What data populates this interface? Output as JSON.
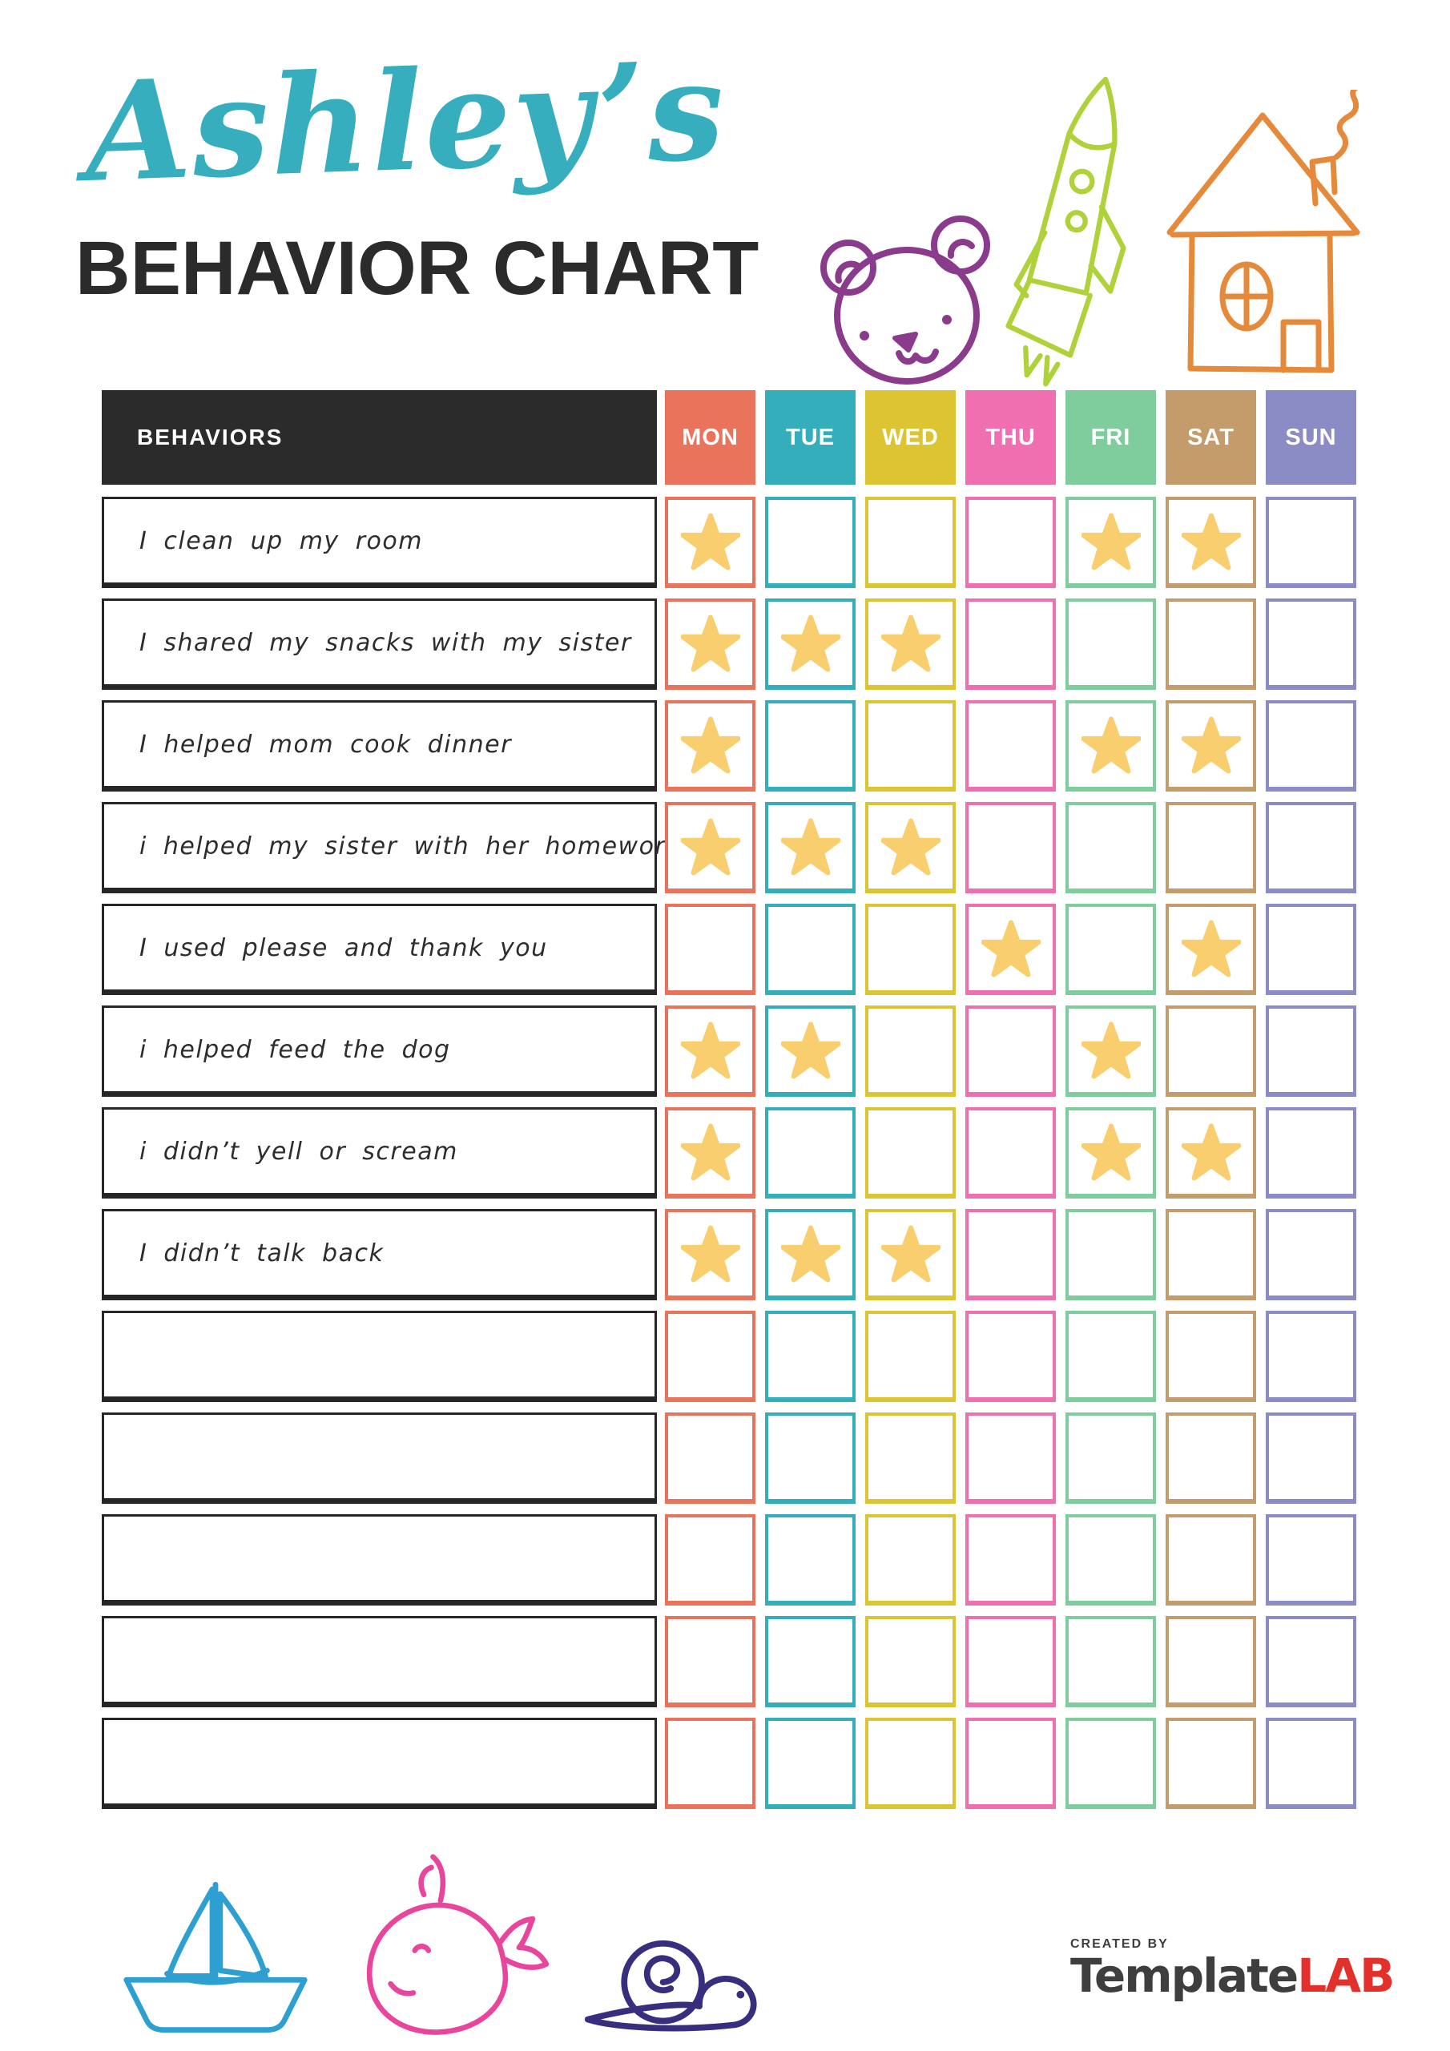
{
  "header": {
    "name": "Ashley’s",
    "title": "BEHAVIOR CHART",
    "icons": [
      "teddy-bear-icon",
      "rocket-icon",
      "house-icon"
    ]
  },
  "palette": {
    "name_teal": "#36AEBE",
    "title_dark": "#2B2B2B",
    "header_bg": "#2B2B2B",
    "star": "#F8CE6E",
    "bear": "#8A3B8C",
    "rocket": "#AFD139",
    "house": "#E58A3A",
    "boat": "#2E9FD1",
    "whale": "#E8459C",
    "snail": "#372F7E",
    "brand_dark": "#3E3E3E",
    "brand_red": "#E2312A"
  },
  "table": {
    "behaviors_label": "BEHAVIORS",
    "days": [
      {
        "label": "MON",
        "color": "#EA745B"
      },
      {
        "label": "TUE",
        "color": "#35AEBC"
      },
      {
        "label": "WED",
        "color": "#DCC433"
      },
      {
        "label": "THU",
        "color": "#F06FB0"
      },
      {
        "label": "FRI",
        "color": "#7FCC9D"
      },
      {
        "label": "SAT",
        "color": "#C49C6C"
      },
      {
        "label": "SUN",
        "color": "#8B8BC5"
      }
    ],
    "rows": [
      {
        "behavior": "I clean up my room",
        "stars": [
          1,
          0,
          0,
          0,
          1,
          1,
          0
        ]
      },
      {
        "behavior": "I shared my snacks with my sister",
        "stars": [
          1,
          1,
          1,
          0,
          0,
          0,
          0
        ]
      },
      {
        "behavior": "I helped mom cook dinner",
        "stars": [
          1,
          0,
          0,
          0,
          1,
          1,
          0
        ]
      },
      {
        "behavior": "i helped my sister with her homework",
        "stars": [
          1,
          1,
          1,
          0,
          0,
          0,
          0
        ]
      },
      {
        "behavior": "I used please and thank you",
        "stars": [
          0,
          0,
          0,
          1,
          0,
          1,
          0
        ]
      },
      {
        "behavior": "i helped feed the dog",
        "stars": [
          1,
          1,
          0,
          0,
          1,
          0,
          0
        ]
      },
      {
        "behavior": "i didn’t yell or scream",
        "stars": [
          1,
          0,
          0,
          0,
          1,
          1,
          0
        ]
      },
      {
        "behavior": "I didn’t talk back",
        "stars": [
          1,
          1,
          1,
          0,
          0,
          0,
          0
        ]
      },
      {
        "behavior": "",
        "stars": [
          0,
          0,
          0,
          0,
          0,
          0,
          0
        ]
      },
      {
        "behavior": "",
        "stars": [
          0,
          0,
          0,
          0,
          0,
          0,
          0
        ]
      },
      {
        "behavior": "",
        "stars": [
          0,
          0,
          0,
          0,
          0,
          0,
          0
        ]
      },
      {
        "behavior": "",
        "stars": [
          0,
          0,
          0,
          0,
          0,
          0,
          0
        ]
      },
      {
        "behavior": "",
        "stars": [
          0,
          0,
          0,
          0,
          0,
          0,
          0
        ]
      }
    ]
  },
  "footer": {
    "icons": [
      "sailboat-icon",
      "whale-icon",
      "snail-icon"
    ],
    "credit_label": "CREATED BY",
    "brand": {
      "primary": "Template",
      "accent": "LAB"
    }
  }
}
